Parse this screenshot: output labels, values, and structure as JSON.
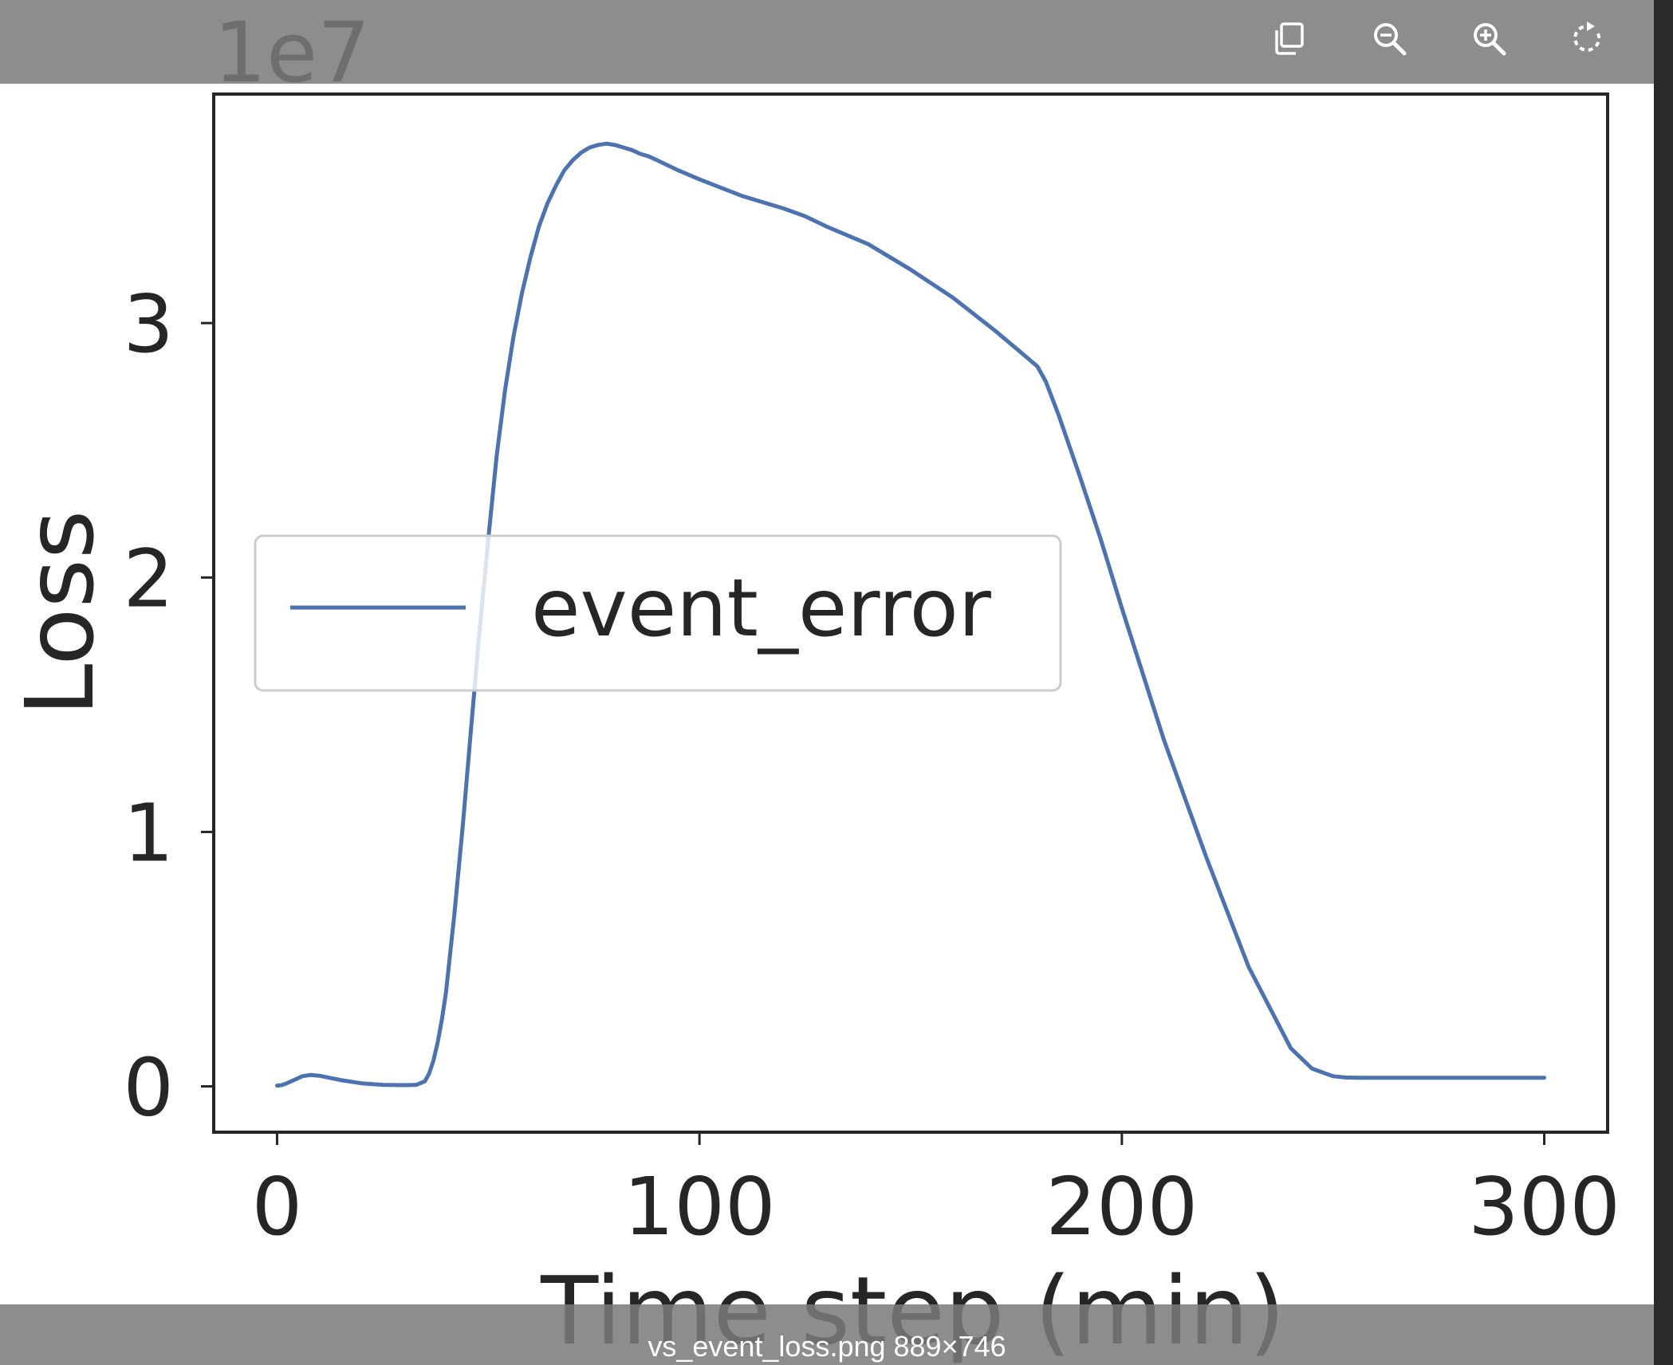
{
  "window": {
    "filename_caption": "vs_event_loss.png 889×746"
  },
  "toolbar": {
    "buttons": [
      {
        "name": "copy",
        "icon": "copy-icon"
      },
      {
        "name": "zoom-out",
        "icon": "zoom-out-icon"
      },
      {
        "name": "zoom-in",
        "icon": "zoom-in-icon"
      },
      {
        "name": "rotate",
        "icon": "rotate-icon"
      }
    ]
  },
  "colors": {
    "series": "#4c72b0",
    "axis": "#262626",
    "text": "#262626"
  },
  "chart_data": {
    "type": "line",
    "title": "",
    "xlabel": "Time step (min)",
    "ylabel": "Loss",
    "y_scale_label": "1e7",
    "xlim": [
      -15,
      315
    ],
    "ylim": [
      -0.18,
      3.9
    ],
    "x_ticks": [
      0,
      100,
      200,
      300
    ],
    "x_tick_labels": [
      "0",
      "100",
      "200",
      "300"
    ],
    "y_ticks": [
      0,
      1,
      2,
      3
    ],
    "y_tick_labels": [
      "0",
      "1",
      "2",
      "3"
    ],
    "grid": false,
    "legend_position": "center-left",
    "series": [
      {
        "name": "event_error",
        "color": "#4c72b0",
        "x": [
          0,
          1,
          2,
          4,
          6,
          8,
          10,
          15,
          20,
          25,
          30,
          33,
          35,
          36,
          37,
          38,
          39,
          40,
          42,
          44,
          46,
          48,
          50,
          52,
          54,
          56,
          58,
          60,
          62,
          64,
          66,
          68,
          70,
          72,
          74,
          76,
          78,
          80,
          82,
          84,
          86,
          88,
          90,
          95,
          100,
          110,
          120,
          125,
          130,
          140,
          150,
          160,
          170,
          175,
          180,
          182,
          185,
          190,
          195,
          200,
          210,
          220,
          230,
          240,
          245,
          250,
          253,
          256,
          260,
          270,
          280,
          290,
          300
        ],
        "y": [
          0.003,
          0.005,
          0.01,
          0.025,
          0.04,
          0.045,
          0.042,
          0.025,
          0.012,
          0.006,
          0.005,
          0.006,
          0.02,
          0.05,
          0.1,
          0.17,
          0.26,
          0.37,
          0.68,
          1.03,
          1.42,
          1.8,
          2.15,
          2.48,
          2.74,
          2.95,
          3.12,
          3.26,
          3.38,
          3.47,
          3.54,
          3.6,
          3.64,
          3.67,
          3.69,
          3.7,
          3.705,
          3.7,
          3.69,
          3.68,
          3.665,
          3.655,
          3.64,
          3.6,
          3.565,
          3.5,
          3.45,
          3.42,
          3.38,
          3.31,
          3.21,
          3.1,
          2.97,
          2.9,
          2.83,
          2.77,
          2.64,
          2.4,
          2.15,
          1.88,
          1.36,
          0.9,
          0.47,
          0.15,
          0.07,
          0.04,
          0.035,
          0.034,
          0.034,
          0.034,
          0.034,
          0.034,
          0.034
        ]
      }
    ]
  }
}
